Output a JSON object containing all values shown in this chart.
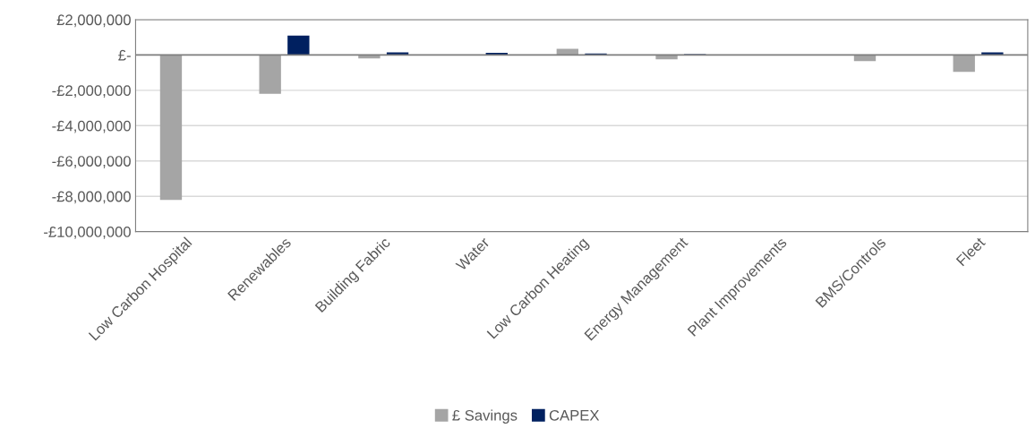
{
  "chart_data": {
    "type": "bar",
    "categories": [
      "Low Carbon Hospital",
      "Renewables",
      "Building Fabric",
      "Water",
      "Low Carbon Heating",
      "Energy Management",
      "Plant Improvements",
      "BMS/Controls",
      "Fleet"
    ],
    "series": [
      {
        "name": "£ Savings",
        "color": "#a5a5a5",
        "values": [
          -8200000,
          -2200000,
          -200000,
          0,
          350000,
          -250000,
          0,
          -350000,
          -950000
        ]
      },
      {
        "name": "CAPEX",
        "color": "#002060",
        "values": [
          0,
          1100000,
          150000,
          120000,
          80000,
          50000,
          20000,
          20000,
          150000
        ]
      }
    ],
    "ylim": [
      -10000000,
      2000000
    ],
    "yticks": [
      {
        "value": 2000000,
        "label": "£2,000,000"
      },
      {
        "value": 0,
        "label": "£-"
      },
      {
        "value": -2000000,
        "label": "-£2,000,000"
      },
      {
        "value": -4000000,
        "label": "-£4,000,000"
      },
      {
        "value": -6000000,
        "label": "-£6,000,000"
      },
      {
        "value": -8000000,
        "label": "-£8,000,000"
      },
      {
        "value": -10000000,
        "label": "-£10,000,000"
      }
    ],
    "grid": "y",
    "legend": "bottom"
  }
}
